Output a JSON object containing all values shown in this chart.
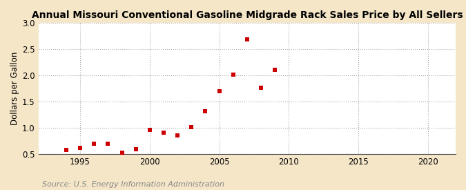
{
  "title": "Annual Missouri Conventional Gasoline Midgrade Rack Sales Price by All Sellers",
  "ylabel": "Dollars per Gallon",
  "source": "Source: U.S. Energy Information Administration",
  "outer_bg": "#f5e6c8",
  "inner_bg": "#ffffff",
  "marker_color": "#cc0000",
  "years": [
    1994,
    1995,
    1996,
    1997,
    1998,
    1999,
    2000,
    2001,
    2002,
    2003,
    2004,
    2005,
    2006,
    2007,
    2008,
    2009
  ],
  "values": [
    0.58,
    0.62,
    0.7,
    0.7,
    0.52,
    0.59,
    0.96,
    0.9,
    0.86,
    1.01,
    1.31,
    1.69,
    2.01,
    2.68,
    1.76,
    2.11
  ],
  "xlim": [
    1992,
    2022
  ],
  "ylim": [
    0.5,
    3.0
  ],
  "yticks": [
    0.5,
    1.0,
    1.5,
    2.0,
    2.5,
    3.0
  ],
  "xticks": [
    1995,
    2000,
    2005,
    2010,
    2015,
    2020
  ],
  "title_fontsize": 10,
  "label_fontsize": 8.5,
  "source_fontsize": 8,
  "source_color": "#888888"
}
